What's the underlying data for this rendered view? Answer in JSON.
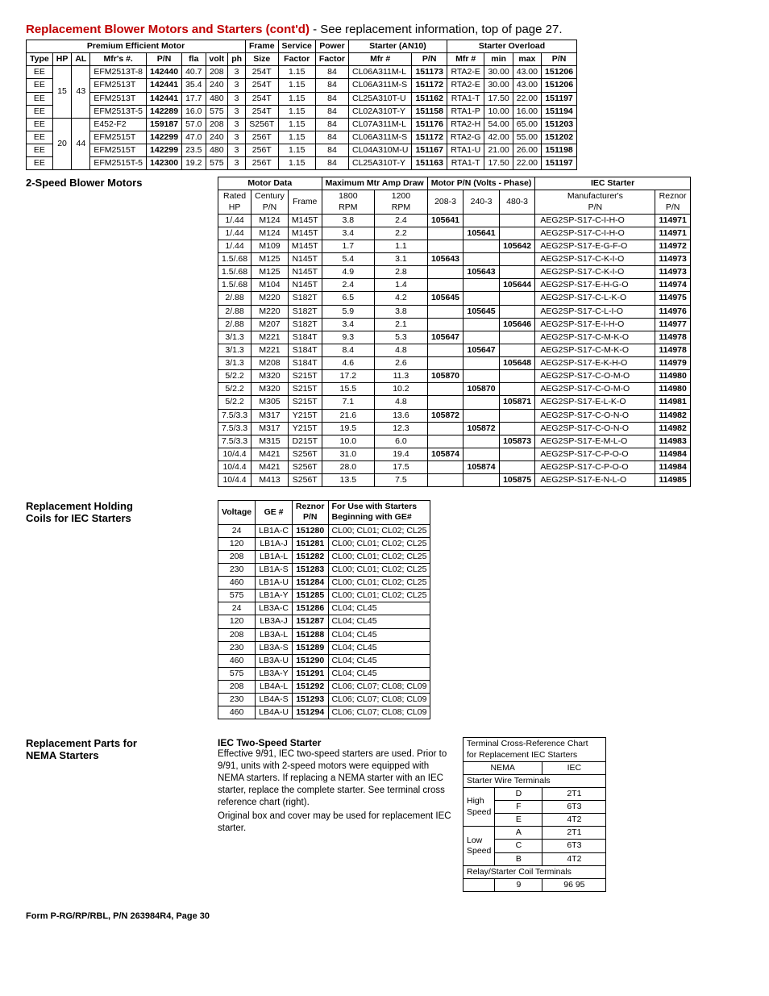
{
  "title_red": "Replacement Blower Motors and Starters (cont'd)",
  "title_rest": " - See replacement information, top of page 27.",
  "t1": {
    "grp1": {
      "label": "Premium Efficient Motor",
      "cols": [
        "Type",
        "HP",
        "AL",
        "Mfr's #.",
        "P/N",
        "fla",
        "volt",
        "ph"
      ]
    },
    "grp2": {
      "label": "Frame",
      "col": "Size"
    },
    "grp3": {
      "label": "Service",
      "col": "Factor"
    },
    "grp4": {
      "label": "Power",
      "col": "Factor"
    },
    "grp5": {
      "label": "Starter (AN10)",
      "cols": [
        "Mfr #",
        "P/N"
      ]
    },
    "grp6": {
      "label": "Starter Overload",
      "cols": [
        "Mfr #",
        "min",
        "max",
        "P/N"
      ]
    },
    "rows": [
      [
        "EE",
        null,
        null,
        "EFM2513T-8",
        "142440",
        "40.7",
        "208",
        "3",
        "254T",
        "1.15",
        "84",
        "CL06A311M-L",
        "151173",
        "RTA2-E",
        "30.00",
        "43.00",
        "151206"
      ],
      [
        "EE",
        "15",
        "43",
        "EFM2513T",
        "142441",
        "35.4",
        "240",
        "3",
        "254T",
        "1.15",
        "84",
        "CL06A311M-S",
        "151172",
        "RTA2-E",
        "30.00",
        "43.00",
        "151206"
      ],
      [
        "EE",
        null,
        null,
        "EFM2513T",
        "142441",
        "17.7",
        "480",
        "3",
        "254T",
        "1.15",
        "84",
        "CL25A310T-U",
        "151162",
        "RTA1-T",
        "17.50",
        "22.00",
        "151197"
      ],
      [
        "EE",
        null,
        null,
        "EFM2513T-5",
        "142289",
        "16.0",
        "575",
        "3",
        "254T",
        "1.15",
        "84",
        "CL02A310T-Y",
        "151158",
        "RTA1-P",
        "10.00",
        "16.00",
        "151194"
      ],
      [
        "EE",
        null,
        null,
        "E452-F2",
        "159187",
        "57.0",
        "208",
        "3",
        "S256T",
        "1.15",
        "84",
        "CL07A311M-L",
        "151176",
        "RTA2-H",
        "54.00",
        "65.00",
        "151203"
      ],
      [
        "EE",
        "20",
        "44",
        "EFM2515T",
        "142299",
        "47.0",
        "240",
        "3",
        "256T",
        "1.15",
        "84",
        "CL06A311M-S",
        "151172",
        "RTA2-G",
        "42.00",
        "55.00",
        "151202"
      ],
      [
        "EE",
        null,
        null,
        "EFM2515T",
        "142299",
        "23.5",
        "480",
        "3",
        "256T",
        "1.15",
        "84",
        "CL04A310M-U",
        "151167",
        "RTA1-U",
        "21.00",
        "26.00",
        "151198"
      ],
      [
        "EE",
        null,
        null,
        "EFM2515T-5",
        "142300",
        "19.2",
        "575",
        "3",
        "256T",
        "1.15",
        "84",
        "CL25A310T-Y",
        "151163",
        "RTA1-T",
        "17.50",
        "22.00",
        "151197"
      ]
    ],
    "hp_al_spans": [
      {
        "start": 0,
        "span": 4,
        "hp": "15",
        "al": "43"
      },
      {
        "start": 4,
        "span": 4,
        "hp": "20",
        "al": "44"
      }
    ]
  },
  "s2_label": "2-Speed Blower Motors",
  "t2": {
    "grp1": {
      "label": "Motor Data",
      "cols": [
        "Rated HP",
        "Century P/N",
        "Frame"
      ]
    },
    "grp2": {
      "label": "Maximum Mtr Amp Draw",
      "cols": [
        "1800 RPM",
        "1200 RPM"
      ]
    },
    "grp3": {
      "label": "Motor P/N (Volts - Phase)",
      "cols": [
        "208-3",
        "240-3",
        "480-3"
      ]
    },
    "grp4": {
      "label": "IEC Starter",
      "cols": [
        "Manufacturer's P/N",
        "Reznor P/N"
      ]
    },
    "rows": [
      [
        "1/.44",
        "M124",
        "M145T",
        "3.8",
        "2.4",
        "105641",
        "",
        "",
        "AEG2SP-S17-C-I-H-O",
        "114971"
      ],
      [
        "1/.44",
        "M124",
        "M145T",
        "3.4",
        "2.2",
        "",
        "105641",
        "",
        "AEG2SP-S17-C-I-H-O",
        "114971"
      ],
      [
        "1/.44",
        "M109",
        "M145T",
        "1.7",
        "1.1",
        "",
        "",
        "105642",
        "AEG2SP-S17-E-G-F-O",
        "114972"
      ],
      [
        "1.5/.68",
        "M125",
        "N145T",
        "5.4",
        "3.1",
        "105643",
        "",
        "",
        "AEG2SP-S17-C-K-I-O",
        "114973"
      ],
      [
        "1.5/.68",
        "M125",
        "N145T",
        "4.9",
        "2.8",
        "",
        "105643",
        "",
        "AEG2SP-S17-C-K-I-O",
        "114973"
      ],
      [
        "1.5/.68",
        "M104",
        "N145T",
        "2.4",
        "1.4",
        "",
        "",
        "105644",
        "AEG2SP-S17-E-H-G-O",
        "114974"
      ],
      [
        "2/.88",
        "M220",
        "S182T",
        "6.5",
        "4.2",
        "105645",
        "",
        "",
        "AEG2SP-S17-C-L-K-O",
        "114975"
      ],
      [
        "2/.88",
        "M220",
        "S182T",
        "5.9",
        "3.8",
        "",
        "105645",
        "",
        "AEG2SP-S17-C-L-I-O",
        "114976"
      ],
      [
        "2/.88",
        "M207",
        "S182T",
        "3.4",
        "2.1",
        "",
        "",
        "105646",
        "AEG2SP-S17-E-I-H-O",
        "114977"
      ],
      [
        "3/1.3",
        "M221",
        "S184T",
        "9.3",
        "5.3",
        "105647",
        "",
        "",
        "AEG2SP-S17-C-M-K-O",
        "114978"
      ],
      [
        "3/1.3",
        "M221",
        "S184T",
        "8.4",
        "4.8",
        "",
        "105647",
        "",
        "AEG2SP-S17-C-M-K-O",
        "114978"
      ],
      [
        "3/1.3",
        "M208",
        "S184T",
        "4.6",
        "2.6",
        "",
        "",
        "105648",
        "AEG2SP-S17-E-K-H-O",
        "114979"
      ],
      [
        "5/2.2",
        "M320",
        "S215T",
        "17.2",
        "11.3",
        "105870",
        "",
        "",
        "AEG2SP-S17-C-O-M-O",
        "114980"
      ],
      [
        "5/2.2",
        "M320",
        "S215T",
        "15.5",
        "10.2",
        "",
        "105870",
        "",
        "AEG2SP-S17-C-O-M-O",
        "114980"
      ],
      [
        "5/2.2",
        "M305",
        "S215T",
        "7.1",
        "4.8",
        "",
        "",
        "105871",
        "AEG2SP-S17-E-L-K-O",
        "114981"
      ],
      [
        "7.5/3.3",
        "M317",
        "Y215T",
        "21.6",
        "13.6",
        "105872",
        "",
        "",
        "AEG2SP-S17-C-O-N-O",
        "114982"
      ],
      [
        "7.5/3.3",
        "M317",
        "Y215T",
        "19.5",
        "12.3",
        "",
        "105872",
        "",
        "AEG2SP-S17-C-O-N-O",
        "114982"
      ],
      [
        "7.5/3.3",
        "M315",
        "D215T",
        "10.0",
        "6.0",
        "",
        "",
        "105873",
        "AEG2SP-S17-E-M-L-O",
        "114983"
      ],
      [
        "10/4.4",
        "M421",
        "S256T",
        "31.0",
        "19.4",
        "105874",
        "",
        "",
        "AEG2SP-S17-C-P-O-O",
        "114984"
      ],
      [
        "10/4.4",
        "M421",
        "S256T",
        "28.0",
        "17.5",
        "",
        "105874",
        "",
        "AEG2SP-S17-C-P-O-O",
        "114984"
      ],
      [
        "10/4.4",
        "M413",
        "S256T",
        "13.5",
        "7.5",
        "",
        "",
        "105875",
        "AEG2SP-S17-E-N-L-O",
        "114985"
      ]
    ]
  },
  "s3_label_a": "Replacement Holding",
  "s3_label_b": "Coils for IEC Starters",
  "t3": {
    "cols": [
      "Voltage",
      "GE #",
      "Reznor P/N",
      "For Use with Starters Beginning with GE#"
    ],
    "rows": [
      [
        "24",
        "LB1A-C",
        "151280",
        "CL00; CL01; CL02; CL25"
      ],
      [
        "120",
        "LB1A-J",
        "151281",
        "CL00; CL01; CL02; CL25"
      ],
      [
        "208",
        "LB1A-L",
        "151282",
        "CL00; CL01; CL02; CL25"
      ],
      [
        "230",
        "LB1A-S",
        "151283",
        "CL00; CL01; CL02; CL25"
      ],
      [
        "460",
        "LB1A-U",
        "151284",
        "CL00; CL01; CL02; CL25"
      ],
      [
        "575",
        "LB1A-Y",
        "151285",
        "CL00; CL01; CL02; CL25"
      ],
      [
        "24",
        "LB3A-C",
        "151286",
        "CL04; CL45"
      ],
      [
        "120",
        "LB3A-J",
        "151287",
        "CL04; CL45"
      ],
      [
        "208",
        "LB3A-L",
        "151288",
        "CL04; CL45"
      ],
      [
        "230",
        "LB3A-S",
        "151289",
        "CL04; CL45"
      ],
      [
        "460",
        "LB3A-U",
        "151290",
        "CL04; CL45"
      ],
      [
        "575",
        "LB3A-Y",
        "151291",
        "CL04; CL45"
      ],
      [
        "208",
        "LB4A-L",
        "151292",
        "CL06; CL07; CL08; CL09"
      ],
      [
        "230",
        "LB4A-S",
        "151293",
        "CL06; CL07; CL08; CL09"
      ],
      [
        "460",
        "LB4A-U",
        "151294",
        "CL06; CL07; CL08; CL09"
      ]
    ]
  },
  "s4_label_a": "Replacement Parts for",
  "s4_label_b": "NEMA Starters",
  "s4_heading": "IEC Two-Speed Starter",
  "s4_p1": "Effective 9/91, IEC two-speed starters are used. Prior to 9/91, units with 2-speed motors were equipped with NEMA starters. If replacing a NEMA starter with an IEC starter, replace the complete starter. See terminal cross reference chart (right).",
  "s4_p2": "Original box and cover may be used for replacement IEC starter.",
  "t4": {
    "title_a": "Terminal Cross-Reference Chart",
    "title_b": "for Replacement IEC Starters",
    "hdr": [
      "NEMA",
      "IEC"
    ],
    "sub": "Starter Wire Terminals",
    "hs": "High Speed",
    "ls": "Low Speed",
    "hs_rows": [
      [
        "D",
        "2T1"
      ],
      [
        "F",
        "6T3"
      ],
      [
        "E",
        "4T2"
      ]
    ],
    "ls_rows": [
      [
        "A",
        "2T1"
      ],
      [
        "C",
        "6T3"
      ],
      [
        "B",
        "4T2"
      ]
    ],
    "coil_hdr": "Relay/Starter Coil Terminals",
    "coil_row": [
      "9",
      "96 95"
    ]
  },
  "footer": "Form P-RG/RP/RBL, P/N 263984R4, Page 30"
}
